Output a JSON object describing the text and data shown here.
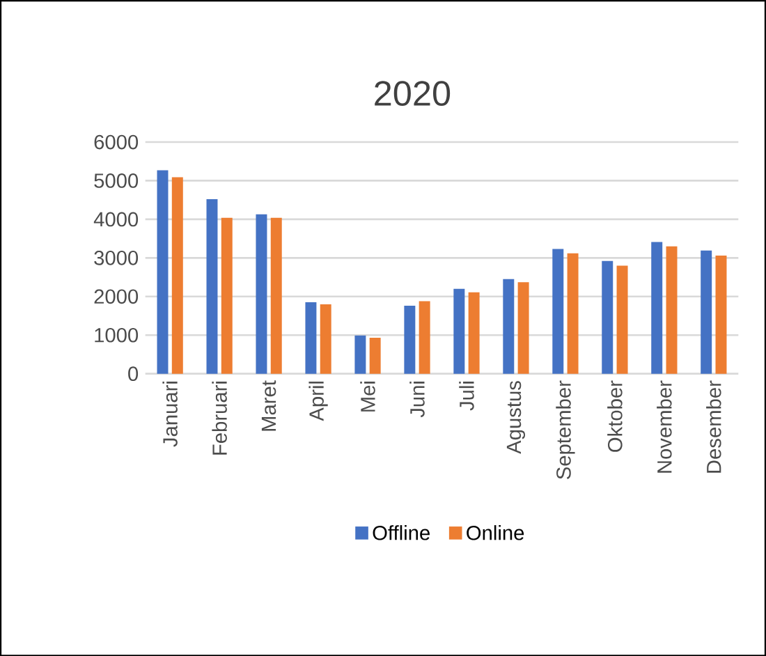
{
  "chart_data": {
    "type": "bar",
    "title": "2020",
    "categories": [
      "Januari",
      "Februari",
      "Maret",
      "April",
      "Mei",
      "Juni",
      "Juli",
      "Agustus",
      "September",
      "Oktober",
      "November",
      "Desember"
    ],
    "series": [
      {
        "name": "Offline",
        "color": "#4472c4",
        "values": [
          5270,
          4520,
          4130,
          1850,
          990,
          1760,
          2200,
          2450,
          3230,
          2920,
          3410,
          3190
        ]
      },
      {
        "name": "Online",
        "color": "#ed7d31",
        "values": [
          5090,
          4040,
          4040,
          1800,
          930,
          1880,
          2110,
          2370,
          3120,
          2800,
          3300,
          3060
        ]
      }
    ],
    "ylim": [
      0,
      6000
    ],
    "yticks": [
      0,
      1000,
      2000,
      3000,
      4000,
      5000,
      6000
    ],
    "grid": "y",
    "legend": "bottom"
  }
}
